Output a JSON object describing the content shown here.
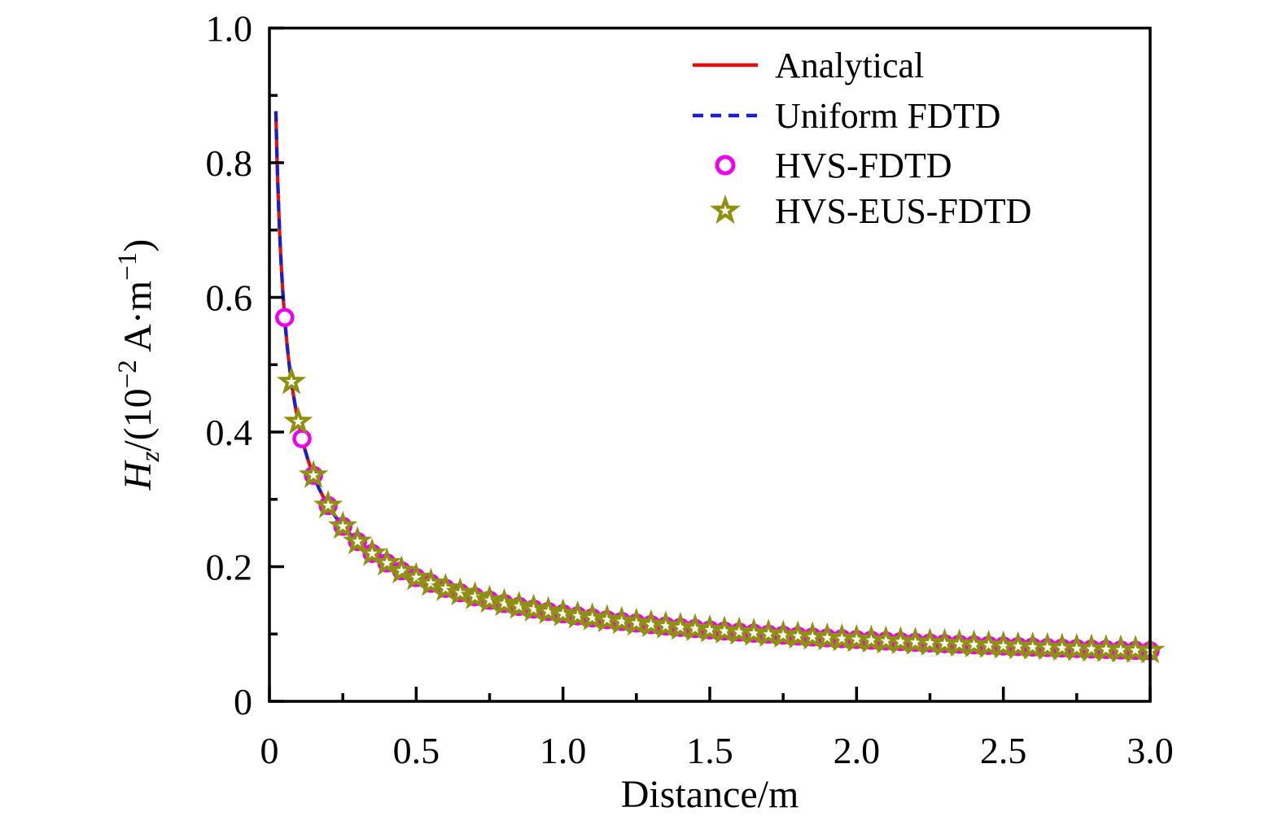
{
  "chart_data": {
    "type": "line",
    "title": "",
    "xlabel": "Distance/m",
    "ylabel_plain": "Hz/(10⁻² A·m⁻¹)",
    "ylabel_parts": [
      {
        "text": "H",
        "italic": true
      },
      {
        "text": "z",
        "italic": true,
        "script": "sub"
      },
      {
        "text": "/(10",
        "italic": false
      },
      {
        "text": "−2",
        "script": "sup"
      },
      {
        "text": " A·m",
        "italic": false
      },
      {
        "text": "−1",
        "script": "sup"
      },
      {
        "text": ")",
        "italic": false
      }
    ],
    "xlim": [
      0,
      3.0
    ],
    "ylim": [
      0,
      1.0
    ],
    "grid": false,
    "axes": {
      "x_major_ticks": [
        0,
        0.5,
        1.0,
        1.5,
        2.0,
        2.5,
        3.0
      ],
      "x_major_labels": [
        "0",
        "0.5",
        "1.0",
        "1.5",
        "2.0",
        "2.5",
        "3.0"
      ],
      "x_minor_ticks": [
        0.25,
        0.75,
        1.25,
        1.75,
        2.25,
        2.75
      ],
      "y_major_ticks": [
        0,
        0.2,
        0.4,
        0.6,
        0.8,
        1.0
      ],
      "y_major_labels": [
        "0",
        "0.2",
        "0.4",
        "0.6",
        "0.8",
        "1.0"
      ],
      "y_minor_ticks": [
        0.1,
        0.3,
        0.5,
        0.7,
        0.9
      ],
      "tick_direction": "in",
      "box": true
    },
    "legend": {
      "position": "upper right inside",
      "frame": false,
      "items": [
        {
          "label": "Analytical",
          "sample": "line-solid",
          "color": "#dd1111"
        },
        {
          "label": "Uniform FDTD",
          "sample": "line-dashed",
          "color": "#1d1dcc"
        },
        {
          "label": "HVS-FDTD",
          "sample": "circle",
          "color": "#ee00ee"
        },
        {
          "label": "HVS-EUS-FDTD",
          "sample": "star",
          "color": "#8f8f10"
        }
      ]
    },
    "series": [
      {
        "name": "Analytical",
        "type": "line",
        "style": "solid",
        "color": "#dd1111",
        "x": [
          0.022,
          0.025,
          0.028,
          0.031,
          0.035,
          0.04,
          0.045,
          0.05,
          0.055,
          0.06,
          0.065,
          0.07,
          0.08,
          0.09,
          0.1,
          0.11,
          0.12,
          0.13,
          0.14,
          0.15,
          0.17,
          0.19,
          0.21,
          0.24,
          0.27,
          0.3,
          0.35,
          0.4,
          0.45,
          0.5,
          0.6,
          0.7,
          0.8,
          0.9,
          1.0,
          1.2,
          1.4,
          1.6,
          1.8,
          2.0,
          2.2,
          2.4,
          2.6,
          2.8,
          3.0
        ],
        "y": [
          0.8765,
          0.8222,
          0.7769,
          0.7383,
          0.6949,
          0.65,
          0.6128,
          0.5814,
          0.5543,
          0.5307,
          0.5099,
          0.4914,
          0.4596,
          0.4333,
          0.4111,
          0.392,
          0.3753,
          0.3606,
          0.3474,
          0.3357,
          0.3153,
          0.2982,
          0.2837,
          0.2654,
          0.2502,
          0.2373,
          0.2197,
          0.2055,
          0.1938,
          0.1838,
          0.1678,
          0.1554,
          0.1453,
          0.137,
          0.13,
          0.1187,
          0.1099,
          0.1028,
          0.0969,
          0.0919,
          0.0876,
          0.0839,
          0.0806,
          0.0777,
          0.0751
        ]
      },
      {
        "name": "Uniform FDTD",
        "type": "line",
        "style": "dashed",
        "color": "#1d1dcc",
        "coincides_with": "Analytical",
        "x": [
          0.022,
          0.025,
          0.028,
          0.031,
          0.035,
          0.04,
          0.045,
          0.05,
          0.055,
          0.06,
          0.065,
          0.07,
          0.08,
          0.09,
          0.1,
          0.11,
          0.12,
          0.13,
          0.14,
          0.15,
          0.17,
          0.19,
          0.21,
          0.24,
          0.27,
          0.3,
          0.35,
          0.4,
          0.45,
          0.5,
          0.6,
          0.7,
          0.8,
          0.9,
          1.0,
          1.2,
          1.4,
          1.6,
          1.8,
          2.0,
          2.2,
          2.4,
          2.6,
          2.8,
          3.0
        ],
        "y": [
          0.8765,
          0.8222,
          0.7769,
          0.7383,
          0.6949,
          0.65,
          0.6128,
          0.5814,
          0.5543,
          0.5307,
          0.5099,
          0.4914,
          0.4596,
          0.4333,
          0.4111,
          0.392,
          0.3753,
          0.3606,
          0.3474,
          0.3357,
          0.3153,
          0.2982,
          0.2837,
          0.2654,
          0.2502,
          0.2373,
          0.2197,
          0.2055,
          0.1938,
          0.1838,
          0.1678,
          0.1554,
          0.1453,
          0.137,
          0.13,
          0.1187,
          0.1099,
          0.1028,
          0.0969,
          0.0919,
          0.0876,
          0.0839,
          0.0806,
          0.0777,
          0.0751
        ]
      },
      {
        "name": "HVS-FDTD",
        "type": "scatter",
        "marker": "circle-open",
        "color": "#ee00ee",
        "x": [
          0.052,
          0.111,
          0.15,
          0.2,
          0.25,
          0.3,
          0.35,
          0.4,
          0.45,
          0.5,
          0.55,
          0.6,
          0.65,
          0.7,
          0.75,
          0.8,
          0.85,
          0.9,
          0.95,
          1.0,
          1.05,
          1.1,
          1.15,
          1.2,
          1.25,
          1.3,
          1.35,
          1.4,
          1.45,
          1.5,
          1.55,
          1.6,
          1.65,
          1.7,
          1.75,
          1.8,
          1.85,
          1.9,
          1.95,
          2.0,
          2.05,
          2.1,
          2.15,
          2.2,
          2.25,
          2.3,
          2.35,
          2.4,
          2.45,
          2.5,
          2.55,
          2.6,
          2.65,
          2.7,
          2.75,
          2.8,
          2.85,
          2.9,
          2.95,
          3.0
        ],
        "y": [
          0.5701,
          0.3902,
          0.3357,
          0.2907,
          0.26,
          0.2373,
          0.2197,
          0.2055,
          0.1938,
          0.1838,
          0.1753,
          0.1678,
          0.1612,
          0.1554,
          0.1501,
          0.1453,
          0.141,
          0.137,
          0.1334,
          0.13,
          0.1269,
          0.124,
          0.1212,
          0.1187,
          0.1163,
          0.114,
          0.1119,
          0.1099,
          0.108,
          0.1061,
          0.1044,
          0.1028,
          0.1012,
          0.0997,
          0.0983,
          0.0969,
          0.0956,
          0.0943,
          0.0931,
          0.0919,
          0.0908,
          0.0897,
          0.0887,
          0.0876,
          0.0867,
          0.0857,
          0.0848,
          0.0839,
          0.0831,
          0.0822,
          0.0814,
          0.0806,
          0.0799,
          0.0791,
          0.0784,
          0.0777,
          0.077,
          0.0763,
          0.0757,
          0.0751
        ]
      },
      {
        "name": "HVS-EUS-FDTD",
        "type": "scatter",
        "marker": "star-open",
        "color": "#8f8f10",
        "x": [
          0.075,
          0.098,
          0.15,
          0.2,
          0.25,
          0.3,
          0.35,
          0.4,
          0.45,
          0.5,
          0.55,
          0.6,
          0.65,
          0.7,
          0.75,
          0.8,
          0.85,
          0.9,
          0.95,
          1.0,
          1.05,
          1.1,
          1.15,
          1.2,
          1.25,
          1.3,
          1.35,
          1.4,
          1.45,
          1.5,
          1.55,
          1.6,
          1.65,
          1.7,
          1.75,
          1.8,
          1.85,
          1.9,
          1.95,
          2.0,
          2.05,
          2.1,
          2.15,
          2.2,
          2.25,
          2.3,
          2.35,
          2.4,
          2.45,
          2.5,
          2.55,
          2.6,
          2.65,
          2.7,
          2.75,
          2.8,
          2.85,
          2.9,
          2.95,
          3.0
        ],
        "y": [
          0.4747,
          0.4153,
          0.3357,
          0.2907,
          0.26,
          0.2373,
          0.2197,
          0.2055,
          0.1938,
          0.1838,
          0.1753,
          0.1678,
          0.1612,
          0.1554,
          0.1501,
          0.1453,
          0.141,
          0.137,
          0.1334,
          0.13,
          0.1269,
          0.124,
          0.1212,
          0.1187,
          0.1163,
          0.114,
          0.1119,
          0.1099,
          0.108,
          0.1061,
          0.1044,
          0.1028,
          0.1012,
          0.0997,
          0.0983,
          0.0969,
          0.0956,
          0.0943,
          0.0931,
          0.0919,
          0.0908,
          0.0897,
          0.0887,
          0.0876,
          0.0867,
          0.0857,
          0.0848,
          0.0839,
          0.0831,
          0.0822,
          0.0814,
          0.0806,
          0.0799,
          0.0791,
          0.0784,
          0.0777,
          0.077,
          0.0763,
          0.0757,
          0.0751
        ]
      }
    ],
    "colors": {
      "analytical_red": "#dd1111",
      "uniform_fdtd_blue": "#1d1dcc",
      "hvs_fdtd_magenta": "#ee00ee",
      "hvs_eus_fdtd_olive": "#8f8f10",
      "axis_black": "#000000"
    }
  }
}
